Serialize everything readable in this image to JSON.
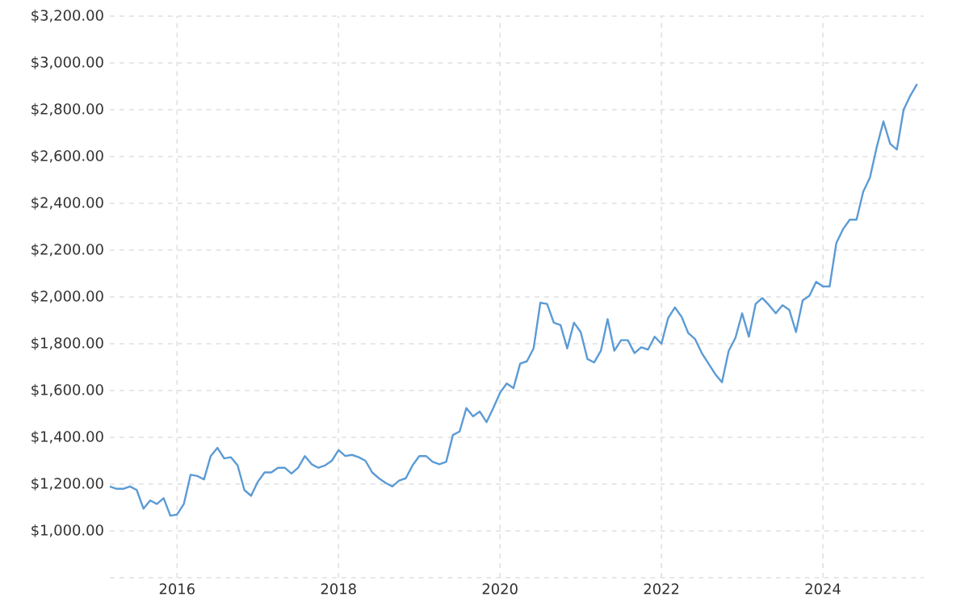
{
  "chart_data": {
    "type": "line",
    "x": [
      "2015-03",
      "2015-04",
      "2015-05",
      "2015-06",
      "2015-07",
      "2015-08",
      "2015-09",
      "2015-10",
      "2015-11",
      "2015-12",
      "2016-01",
      "2016-02",
      "2016-03",
      "2016-04",
      "2016-05",
      "2016-06",
      "2016-07",
      "2016-08",
      "2016-09",
      "2016-10",
      "2016-11",
      "2016-12",
      "2017-01",
      "2017-02",
      "2017-03",
      "2017-04",
      "2017-05",
      "2017-06",
      "2017-07",
      "2017-08",
      "2017-09",
      "2017-10",
      "2017-11",
      "2017-12",
      "2018-01",
      "2018-02",
      "2018-03",
      "2018-04",
      "2018-05",
      "2018-06",
      "2018-07",
      "2018-08",
      "2018-09",
      "2018-10",
      "2018-11",
      "2018-12",
      "2019-01",
      "2019-02",
      "2019-03",
      "2019-04",
      "2019-05",
      "2019-06",
      "2019-07",
      "2019-08",
      "2019-09",
      "2019-10",
      "2019-11",
      "2019-12",
      "2020-01",
      "2020-02",
      "2020-03",
      "2020-04",
      "2020-05",
      "2020-06",
      "2020-07",
      "2020-08",
      "2020-09",
      "2020-10",
      "2020-11",
      "2020-12",
      "2021-01",
      "2021-02",
      "2021-03",
      "2021-04",
      "2021-05",
      "2021-06",
      "2021-07",
      "2021-08",
      "2021-09",
      "2021-10",
      "2021-11",
      "2021-12",
      "2022-01",
      "2022-02",
      "2022-03",
      "2022-04",
      "2022-05",
      "2022-06",
      "2022-07",
      "2022-08",
      "2022-09",
      "2022-10",
      "2022-11",
      "2022-12",
      "2023-01",
      "2023-02",
      "2023-03",
      "2023-04",
      "2023-05",
      "2023-06",
      "2023-07",
      "2023-08",
      "2023-09",
      "2023-10",
      "2023-11",
      "2023-12",
      "2024-01",
      "2024-02",
      "2024-03",
      "2024-04",
      "2024-05",
      "2024-06",
      "2024-07",
      "2024-08",
      "2024-09",
      "2024-10",
      "2024-11",
      "2024-12",
      "2025-01",
      "2025-02",
      "2025-03"
    ],
    "series": [
      {
        "color": "#5b9bd5",
        "values": [
          1190,
          1180,
          1180,
          1190,
          1175,
          1095,
          1130,
          1115,
          1140,
          1065,
          1070,
          1115,
          1240,
          1235,
          1220,
          1320,
          1355,
          1310,
          1315,
          1280,
          1175,
          1150,
          1210,
          1250,
          1250,
          1270,
          1270,
          1245,
          1270,
          1320,
          1285,
          1270,
          1280,
          1300,
          1345,
          1320,
          1325,
          1315,
          1300,
          1250,
          1225,
          1205,
          1190,
          1215,
          1225,
          1280,
          1320,
          1320,
          1295,
          1285,
          1295,
          1410,
          1425,
          1525,
          1490,
          1510,
          1465,
          1525,
          1590,
          1630,
          1610,
          1715,
          1725,
          1780,
          1975,
          1970,
          1890,
          1880,
          1780,
          1890,
          1850,
          1735,
          1720,
          1770,
          1905,
          1770,
          1815,
          1815,
          1760,
          1785,
          1775,
          1830,
          1800,
          1910,
          1955,
          1915,
          1845,
          1820,
          1760,
          1715,
          1670,
          1635,
          1770,
          1825,
          1930,
          1830,
          1970,
          1995,
          1965,
          1930,
          1965,
          1945,
          1850,
          1985,
          2005,
          2065,
          2045,
          2045,
          2230,
          2290,
          2330,
          2330,
          2450,
          2510,
          2640,
          2750,
          2655,
          2630,
          2800,
          2860,
          2910
        ]
      }
    ],
    "xlim": [
      "2015-03",
      "2025-04"
    ],
    "xticks": [
      "2016",
      "2018",
      "2020",
      "2022",
      "2024"
    ],
    "ylim": [
      800,
      3200
    ],
    "yticks": [
      {
        "value": 800,
        "label": null
      },
      {
        "value": 1000,
        "label": "$1,000.00"
      },
      {
        "value": 1200,
        "label": "$1,200.00"
      },
      {
        "value": 1400,
        "label": "$1,400.00"
      },
      {
        "value": 1600,
        "label": "$1,600.00"
      },
      {
        "value": 1800,
        "label": "$1,800.00"
      },
      {
        "value": 2000,
        "label": "$2,000.00"
      },
      {
        "value": 2200,
        "label": "$2,200.00"
      },
      {
        "value": 2400,
        "label": "$2,400.00"
      },
      {
        "value": 2600,
        "label": "$2,600.00"
      },
      {
        "value": 2800,
        "label": "$2,800.00"
      },
      {
        "value": 3000,
        "label": "$3,000.00"
      },
      {
        "value": 3200,
        "label": "$3,200.00"
      }
    ],
    "grid": true,
    "marker": "none",
    "line_style": "solid"
  }
}
